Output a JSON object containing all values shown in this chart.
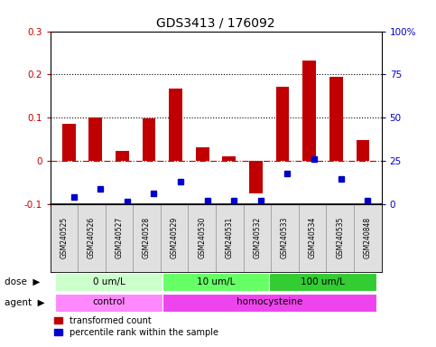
{
  "title": "GDS3413 / 176092",
  "samples": [
    "GSM240525",
    "GSM240526",
    "GSM240527",
    "GSM240528",
    "GSM240529",
    "GSM240530",
    "GSM240531",
    "GSM240532",
    "GSM240533",
    "GSM240534",
    "GSM240535",
    "GSM240848"
  ],
  "transformed_count": [
    0.085,
    0.1,
    0.022,
    0.097,
    0.168,
    0.03,
    0.01,
    -0.075,
    0.172,
    0.232,
    0.195,
    0.047
  ],
  "percentile_rank_normalized": [
    -0.085,
    -0.065,
    -0.095,
    -0.075,
    -0.048,
    -0.093,
    -0.093,
    -0.093,
    -0.03,
    0.003,
    -0.042,
    -0.093
  ],
  "bar_color_red": "#C00000",
  "bar_color_blue": "#0000CC",
  "ylim": [
    -0.1,
    0.3
  ],
  "y2lim": [
    0,
    100
  ],
  "yticks": [
    -0.1,
    0.0,
    0.1,
    0.2,
    0.3
  ],
  "y2ticks": [
    0,
    25,
    50,
    75,
    100
  ],
  "ytick_labels": [
    "-0.1",
    "0",
    "0.1",
    "0.2",
    "0.3"
  ],
  "y2tick_labels": [
    "0",
    "25",
    "50",
    "75",
    "100%"
  ],
  "hlines_dotted": [
    0.1,
    0.2
  ],
  "hline_dashdot": 0.0,
  "dose_groups": [
    {
      "label": "0 um/L",
      "start": 0,
      "end": 4,
      "color": "#CCFFCC"
    },
    {
      "label": "10 um/L",
      "start": 4,
      "end": 8,
      "color": "#66FF66"
    },
    {
      "label": "100 um/L",
      "start": 8,
      "end": 12,
      "color": "#33CC33"
    }
  ],
  "agent_groups": [
    {
      "label": "control",
      "start": 0,
      "end": 4,
      "color": "#FF88FF"
    },
    {
      "label": "homocysteine",
      "start": 4,
      "end": 12,
      "color": "#EE44EE"
    }
  ],
  "dose_label": "dose",
  "agent_label": "agent",
  "legend_red": "transformed count",
  "legend_blue": "percentile rank within the sample",
  "bg_color": "#E0E0E0",
  "axis_bg": "#FFFFFF",
  "title_fontsize": 10,
  "tick_fontsize": 7.5,
  "bar_width": 0.5
}
